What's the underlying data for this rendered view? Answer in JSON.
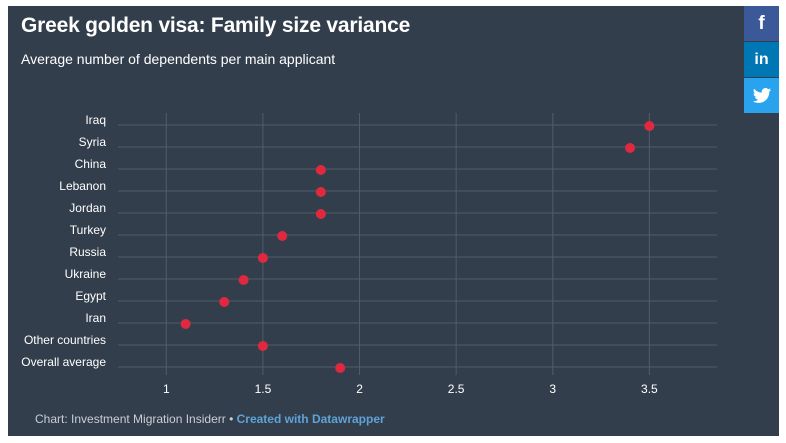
{
  "title": "Greek golden visa: Family size variance",
  "subtitle": "Average number of dependents per main applicant",
  "social": {
    "facebook": "f",
    "linkedin": "in",
    "twitter_icon": "twitter-bird"
  },
  "footer": {
    "source": "Chart: Investment Migration Insiderr",
    "separator": " • ",
    "link_text": "Created with Datawrapper"
  },
  "colors": {
    "background": "#333e4d",
    "dot": "#e0293e",
    "grid": "#505c6b",
    "text": "#ffffff",
    "link": "#5fa3d6"
  },
  "chart_data": {
    "type": "scatter",
    "title": "Greek golden visa: Family size variance",
    "subtitle": "Average number of dependents per main applicant",
    "categories": [
      "Iraq",
      "Syria",
      "China",
      "Lebanon",
      "Jordan",
      "Turkey",
      "Russia",
      "Ukraine",
      "Egypt",
      "Iran",
      "Other countries",
      "Overall average"
    ],
    "values": [
      3.5,
      3.4,
      1.8,
      1.8,
      1.8,
      1.6,
      1.5,
      1.4,
      1.3,
      1.1,
      1.5,
      1.9
    ],
    "xticks": [
      1,
      1.5,
      2,
      2.5,
      3,
      3.5
    ],
    "xtick_labels": [
      "1",
      "1.5",
      "2",
      "2.5",
      "3",
      "3.5"
    ],
    "xlim": [
      0.75,
      3.85
    ],
    "xlabel": "",
    "ylabel": "",
    "grid": true
  }
}
